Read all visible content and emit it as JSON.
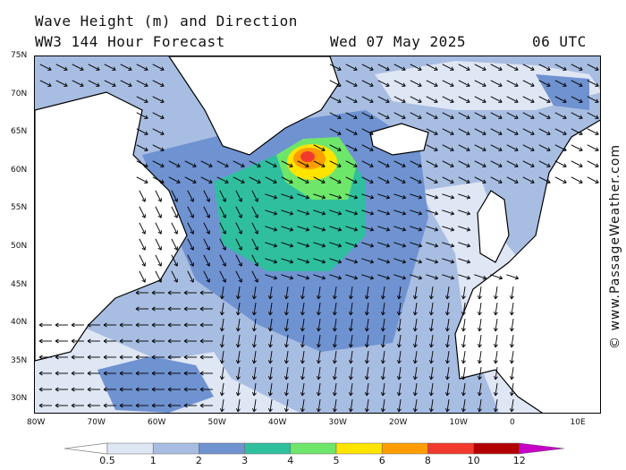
{
  "header": {
    "title": "Wave Height (m) and Direction",
    "model": "WW3 144 Hour Forecast",
    "date": "Wed 07 May 2025",
    "time": "06 UTC"
  },
  "axes": {
    "lat_labels": [
      "75N",
      "70N",
      "65N",
      "60N",
      "55N",
      "50N",
      "45N",
      "40N",
      "35N",
      "30N"
    ],
    "lon_labels": [
      "80W",
      "70W",
      "60W",
      "50W",
      "40W",
      "30W",
      "20W",
      "10W",
      "0",
      "10E"
    ]
  },
  "colorbar": {
    "labels": [
      "0.5",
      "1",
      "2",
      "3",
      "4",
      "5",
      "6",
      "8",
      "10",
      "12"
    ],
    "colors": [
      "#dfe6f4",
      "#a8bde2",
      "#6f92d1",
      "#2fbf9f",
      "#6ee66a",
      "#ffe400",
      "#ff9d00",
      "#f23a2c",
      "#b30000",
      "#c800c8"
    ]
  },
  "credit": "© www.PassageWeather.com",
  "palette": {
    "land": "#ffffff",
    "coast": "#000000"
  }
}
